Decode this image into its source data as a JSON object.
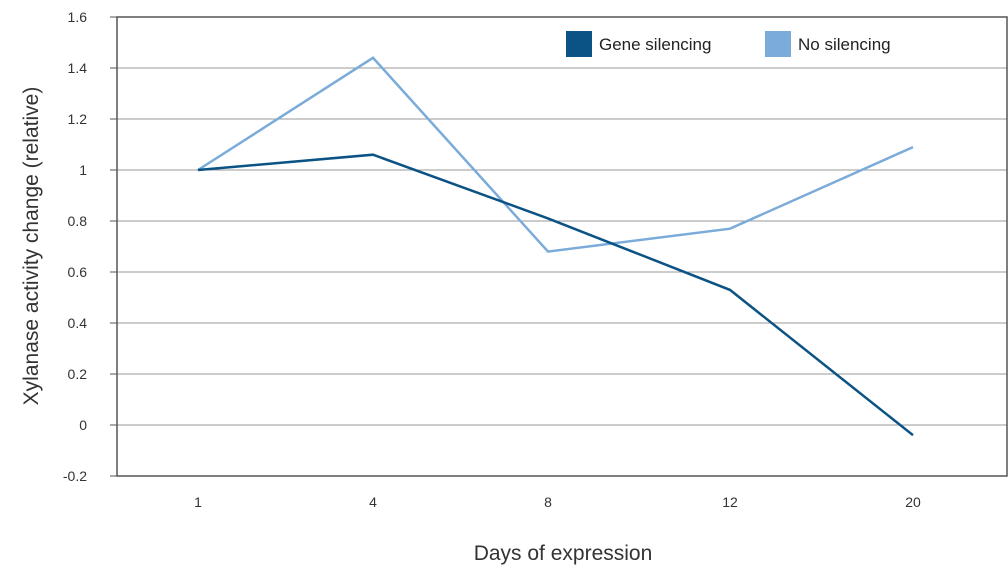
{
  "chart_data": {
    "type": "line",
    "xlabel": "Days of expression",
    "ylabel": "Xylanase activity change (relative)",
    "categories": [
      "1",
      "4",
      "8",
      "12",
      "20"
    ],
    "ylim": [
      -0.2,
      1.6
    ],
    "yticks": [
      "1.6",
      "1.4",
      "1.2",
      "1",
      "0.8",
      "0.6",
      "0.4",
      "0.2",
      "0",
      "-0.2"
    ],
    "ytick_values": [
      1.6,
      1.4,
      1.2,
      1.0,
      0.8,
      0.6,
      0.4,
      0.2,
      0.0,
      -0.2
    ],
    "grid": true,
    "legend_position": "top-right",
    "series": [
      {
        "name": "Gene silencing",
        "color": "#0b5384",
        "values": [
          1.0,
          1.06,
          0.81,
          0.53,
          -0.04
        ]
      },
      {
        "name": "No silencing",
        "color": "#7aabd9",
        "values": [
          1.0,
          1.44,
          0.68,
          0.77,
          1.09
        ]
      }
    ]
  }
}
